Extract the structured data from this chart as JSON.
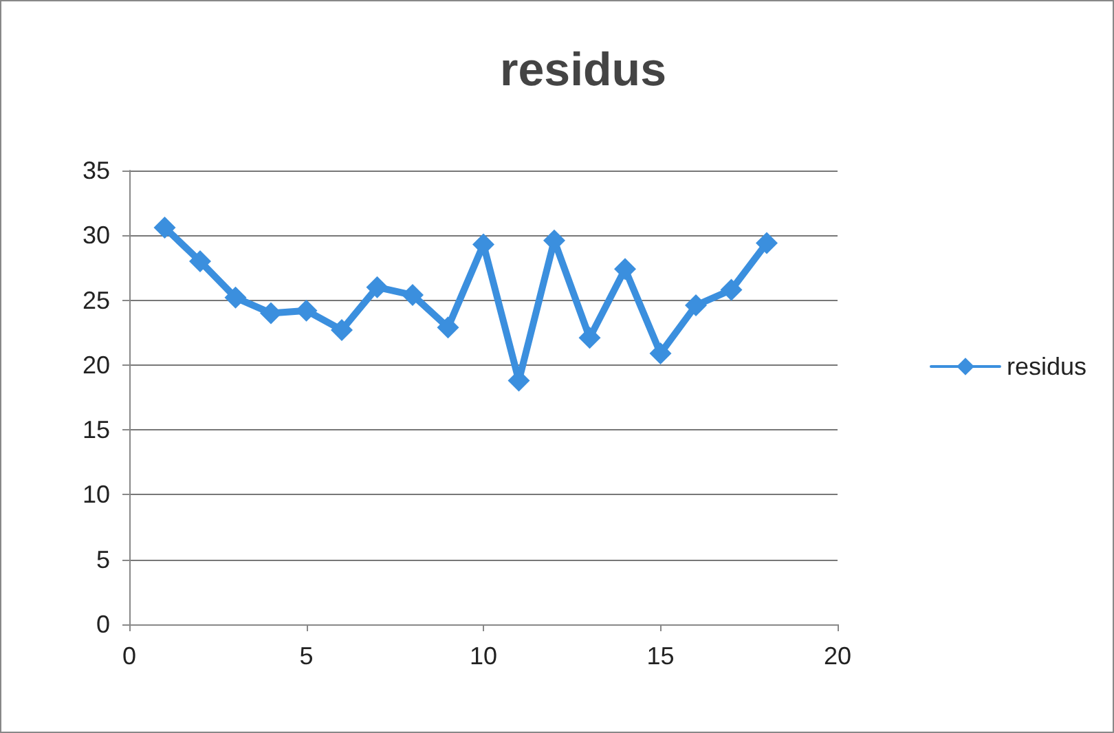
{
  "chart_data": {
    "type": "line",
    "title": "residus",
    "x": [
      1,
      2,
      3,
      4,
      5,
      6,
      7,
      8,
      9,
      10,
      11,
      12,
      13,
      14,
      15,
      16,
      17,
      18
    ],
    "series": [
      {
        "name": "residus",
        "color": "#3b8fde",
        "values": [
          30.6,
          28,
          25.2,
          24,
          24.2,
          22.7,
          26,
          25.4,
          22.9,
          29.3,
          18.8,
          29.6,
          22.1,
          27.4,
          20.9,
          24.6,
          25.8,
          29.4
        ]
      }
    ],
    "xlim": [
      0,
      20
    ],
    "xticks": [
      0,
      5,
      10,
      15,
      20
    ],
    "ylim": [
      0,
      35
    ],
    "yticks": [
      0,
      5,
      10,
      15,
      20,
      25,
      30,
      35
    ],
    "grid": "y",
    "legend": "right",
    "marker": "diamond",
    "line_style": "solid"
  }
}
